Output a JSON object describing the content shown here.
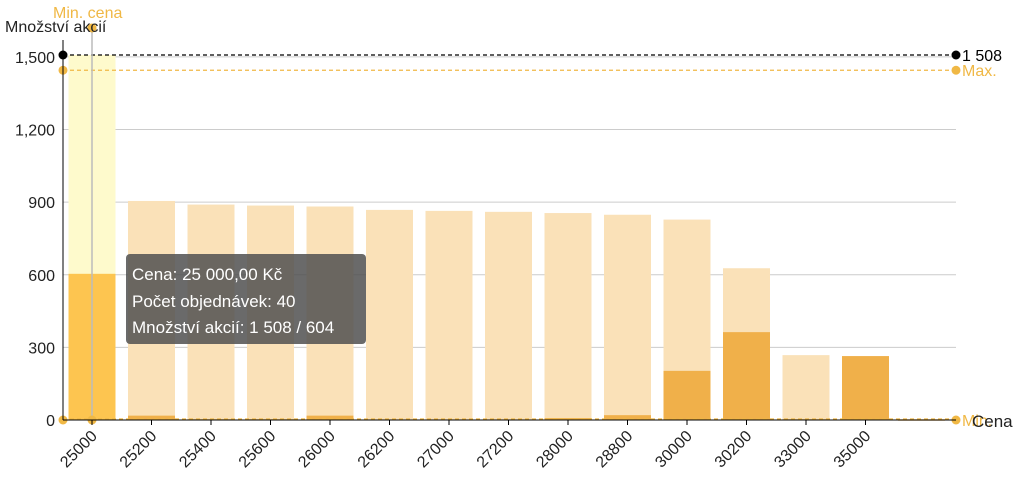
{
  "chart_data": {
    "type": "bar",
    "xlabel": "Cena",
    "ylabel": "Množství akcií",
    "ylim": [
      0,
      1508
    ],
    "yticks": [
      "0",
      "300",
      "600",
      "900",
      "1,200",
      "1,500"
    ],
    "categories": [
      "25000",
      "25200",
      "25400",
      "25600",
      "26000",
      "26200",
      "27000",
      "27200",
      "28000",
      "28800",
      "30000",
      "30200",
      "33000",
      "35000"
    ],
    "series": [
      {
        "values": [
          1508,
          905,
          890,
          886,
          882,
          868,
          864,
          860,
          855,
          848,
          828,
          627,
          268,
          264
        ]
      },
      {
        "values": [
          604,
          18,
          3,
          3,
          18,
          2,
          2,
          2,
          8,
          20,
          203,
          363,
          3,
          264
        ]
      }
    ],
    "reference_lines": {
      "total": {
        "value": 1508,
        "label": "1 508",
        "color": "#000000"
      },
      "max": {
        "value": 1445,
        "label": "Max.",
        "color": "#f0b845"
      },
      "min": {
        "value": 0,
        "label": "Min.",
        "color": "#f0b845"
      },
      "min_price": {
        "category": "25000",
        "label": "Min. cena",
        "color": "#f0b845"
      }
    },
    "colors": {
      "total_bar": "#fae1b8",
      "total_bar_highlight": "#fefacc",
      "part_bar": "#f0b04a",
      "part_bar_highlight": "#fdc550",
      "grid": "#cccccc",
      "axis": "#000000",
      "reference": "#f0b845"
    },
    "highlighted_category": "25000"
  },
  "tooltip": {
    "price": "Cena: 25 000,00 Kč",
    "orders": "Počet objednávek: 40",
    "shares": "Množství akcií: 1 508 / 604"
  }
}
